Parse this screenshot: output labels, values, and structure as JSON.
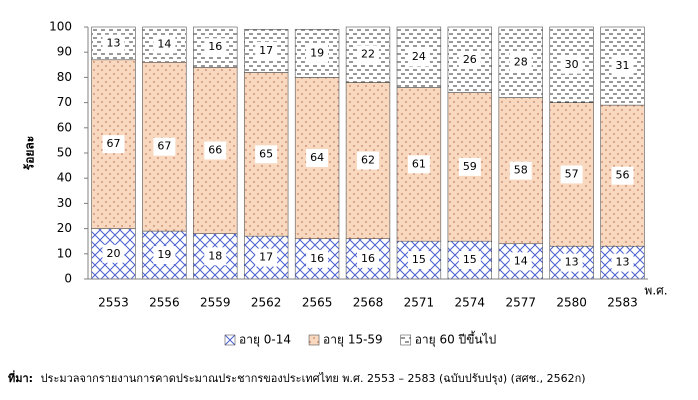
{
  "chart_data": {
    "type": "stacked_bar",
    "y_label": "ร้อยละ",
    "x_label": "พ.ศ.",
    "categories": [
      "2553",
      "2556",
      "2559",
      "2562",
      "2565",
      "2568",
      "2571",
      "2574",
      "2577",
      "2580",
      "2583"
    ],
    "series": [
      {
        "name": "อายุ 0-14",
        "color": "#4a5fd0",
        "values": [
          20,
          19,
          18,
          17,
          16,
          16,
          15,
          15,
          14,
          13,
          13
        ]
      },
      {
        "name": "อายุ 15-59",
        "color": "#f8d8bf",
        "values": [
          67,
          67,
          66,
          65,
          64,
          62,
          61,
          59,
          58,
          57,
          56
        ]
      },
      {
        "name": "อายุ 60 ปีขึ้นไป",
        "color": "#ffffff",
        "values": [
          13,
          14,
          16,
          17,
          19,
          22,
          24,
          26,
          28,
          30,
          31
        ]
      }
    ],
    "ylim": [
      0,
      100
    ],
    "yticks": [
      0,
      10,
      20,
      30,
      40,
      50,
      60,
      70,
      80,
      90,
      100
    ],
    "legend": "bottom",
    "source_label": "ที่มา:",
    "source": "ประมวลจากรายงานการคาดประมาณประชากรของประเทศไทย พ.ศ. 2553 – 2583 (ฉบับปรับปรุง) (สศช., 2562ก)"
  }
}
